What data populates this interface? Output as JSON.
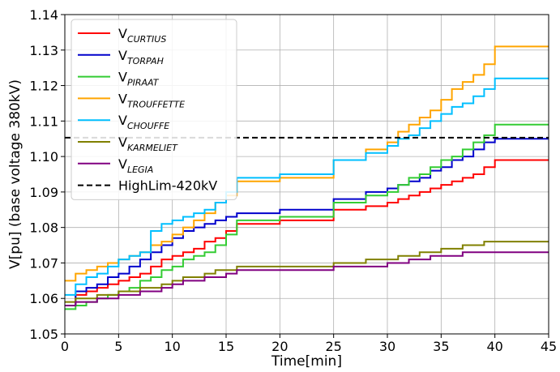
{
  "chart_data": {
    "type": "line",
    "title": "",
    "xlabel": "Time[min]",
    "ylabel": "V[pu] (base voltage 380kV)",
    "xlim": [
      0,
      45
    ],
    "ylim": [
      1.05,
      1.14
    ],
    "xticks": [
      "0",
      "5",
      "10",
      "15",
      "20",
      "25",
      "30",
      "35",
      "40",
      "45"
    ],
    "yticks": [
      "1.05",
      "1.06",
      "1.07",
      "1.08",
      "1.09",
      "1.10",
      "1.11",
      "1.12",
      "1.13",
      "1.14"
    ],
    "grid": true,
    "legend_position": "top-left",
    "series": [
      {
        "name": "V",
        "subscript": "CURTIUS",
        "color": "#ff0000",
        "x": [
          0,
          1,
          2,
          3,
          4,
          5,
          6,
          7,
          8,
          9,
          10,
          11,
          12,
          13,
          14,
          15,
          16,
          20,
          25,
          28,
          30,
          31,
          32,
          33,
          34,
          35,
          36,
          37,
          38,
          39,
          40,
          45
        ],
        "y": [
          1.058,
          1.061,
          1.062,
          1.063,
          1.064,
          1.065,
          1.066,
          1.067,
          1.069,
          1.071,
          1.072,
          1.073,
          1.074,
          1.076,
          1.077,
          1.079,
          1.081,
          1.082,
          1.085,
          1.086,
          1.087,
          1.088,
          1.089,
          1.09,
          1.091,
          1.092,
          1.093,
          1.094,
          1.095,
          1.097,
          1.099,
          1.099
        ]
      },
      {
        "name": "V",
        "subscript": "TORPAH",
        "color": "#0000cc",
        "x": [
          0,
          1,
          2,
          3,
          4,
          5,
          6,
          7,
          8,
          9,
          10,
          11,
          12,
          13,
          14,
          15,
          16,
          20,
          25,
          28,
          30,
          31,
          32,
          33,
          34,
          35,
          36,
          37,
          38,
          39,
          40,
          45
        ],
        "y": [
          1.058,
          1.062,
          1.063,
          1.064,
          1.066,
          1.067,
          1.069,
          1.071,
          1.073,
          1.075,
          1.077,
          1.079,
          1.08,
          1.081,
          1.082,
          1.083,
          1.084,
          1.085,
          1.088,
          1.09,
          1.091,
          1.092,
          1.093,
          1.094,
          1.096,
          1.097,
          1.099,
          1.1,
          1.102,
          1.104,
          1.105,
          1.105
        ]
      },
      {
        "name": "V",
        "subscript": "PIRAAT",
        "color": "#33cc33",
        "x": [
          0,
          1,
          2,
          3,
          4,
          5,
          6,
          7,
          8,
          9,
          10,
          11,
          12,
          13,
          14,
          15,
          16,
          20,
          25,
          28,
          30,
          31,
          32,
          33,
          34,
          35,
          36,
          37,
          38,
          39,
          40,
          45
        ],
        "y": [
          1.057,
          1.058,
          1.059,
          1.06,
          1.061,
          1.062,
          1.063,
          1.065,
          1.066,
          1.068,
          1.069,
          1.071,
          1.072,
          1.073,
          1.075,
          1.078,
          1.082,
          1.083,
          1.087,
          1.089,
          1.09,
          1.092,
          1.094,
          1.095,
          1.097,
          1.099,
          1.1,
          1.102,
          1.104,
          1.106,
          1.109,
          1.109
        ]
      },
      {
        "name": "V",
        "subscript": "TROUFFETTE",
        "color": "#ffa500",
        "x": [
          0,
          1,
          2,
          3,
          4,
          5,
          6,
          7,
          8,
          9,
          10,
          11,
          12,
          13,
          14,
          15,
          16,
          20,
          25,
          28,
          30,
          31,
          32,
          33,
          34,
          35,
          36,
          37,
          38,
          39,
          40,
          45
        ],
        "y": [
          1.065,
          1.067,
          1.068,
          1.069,
          1.07,
          1.071,
          1.072,
          1.073,
          1.075,
          1.076,
          1.078,
          1.08,
          1.082,
          1.084,
          1.087,
          1.089,
          1.093,
          1.094,
          1.099,
          1.102,
          1.104,
          1.107,
          1.109,
          1.111,
          1.113,
          1.116,
          1.119,
          1.121,
          1.123,
          1.126,
          1.131,
          1.131
        ]
      },
      {
        "name": "V",
        "subscript": "CHOUFFE",
        "color": "#00bfff",
        "x": [
          0,
          1,
          2,
          3,
          4,
          5,
          6,
          7,
          8,
          9,
          10,
          11,
          12,
          13,
          14,
          15,
          16,
          20,
          25,
          28,
          30,
          31,
          32,
          33,
          34,
          35,
          36,
          37,
          38,
          39,
          40,
          45
        ],
        "y": [
          1.061,
          1.064,
          1.066,
          1.067,
          1.069,
          1.071,
          1.072,
          1.073,
          1.079,
          1.081,
          1.082,
          1.083,
          1.084,
          1.085,
          1.087,
          1.09,
          1.094,
          1.095,
          1.099,
          1.101,
          1.103,
          1.105,
          1.106,
          1.108,
          1.11,
          1.112,
          1.114,
          1.115,
          1.117,
          1.119,
          1.122,
          1.122
        ]
      },
      {
        "name": "V",
        "subscript": "KARMELIET",
        "color": "#808000",
        "x": [
          0,
          1,
          2,
          3,
          4,
          5,
          6,
          7,
          8,
          9,
          10,
          11,
          12,
          13,
          14,
          15,
          16,
          20,
          25,
          28,
          30,
          31,
          32,
          33,
          34,
          35,
          36,
          37,
          38,
          39,
          40,
          45
        ],
        "y": [
          1.059,
          1.06,
          1.06,
          1.061,
          1.061,
          1.062,
          1.062,
          1.063,
          1.063,
          1.064,
          1.065,
          1.066,
          1.066,
          1.067,
          1.068,
          1.068,
          1.069,
          1.069,
          1.07,
          1.071,
          1.071,
          1.072,
          1.072,
          1.073,
          1.073,
          1.074,
          1.074,
          1.075,
          1.075,
          1.076,
          1.076,
          1.076
        ]
      },
      {
        "name": "V",
        "subscript": "LEGIA",
        "color": "#800080",
        "x": [
          0,
          1,
          2,
          3,
          4,
          5,
          6,
          7,
          8,
          9,
          10,
          11,
          12,
          13,
          14,
          15,
          16,
          20,
          25,
          28,
          30,
          31,
          32,
          33,
          34,
          35,
          36,
          37,
          38,
          39,
          40,
          45
        ],
        "y": [
          1.058,
          1.059,
          1.059,
          1.06,
          1.06,
          1.061,
          1.061,
          1.062,
          1.062,
          1.063,
          1.064,
          1.065,
          1.065,
          1.066,
          1.066,
          1.067,
          1.068,
          1.068,
          1.069,
          1.069,
          1.07,
          1.07,
          1.071,
          1.071,
          1.072,
          1.072,
          1.072,
          1.073,
          1.073,
          1.073,
          1.073,
          1.073
        ]
      },
      {
        "name": "HighLim-420kV",
        "color": "#000000",
        "dashed": true,
        "x": [
          0,
          45
        ],
        "y": [
          1.1053,
          1.1053
        ]
      }
    ]
  }
}
